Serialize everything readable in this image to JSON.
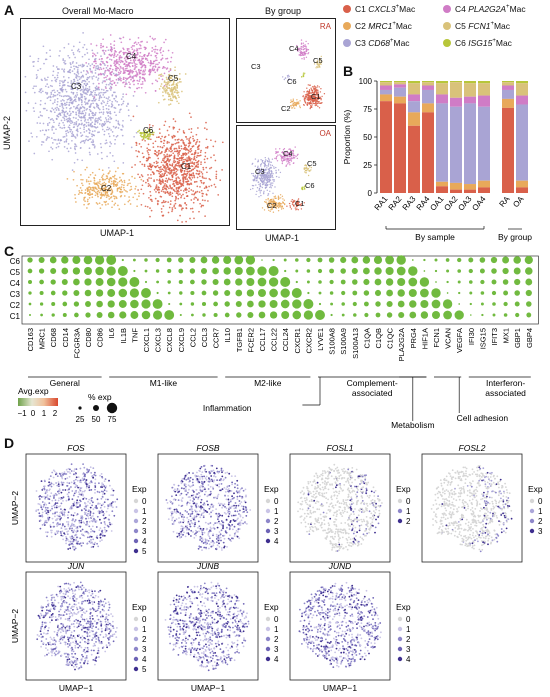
{
  "panels": {
    "A": "A",
    "B": "B",
    "C": "C",
    "D": "D"
  },
  "panelA": {
    "title_main": "Overall Mo-Macro",
    "title_group": "By group",
    "x_label": "UMAP-1",
    "y_label": "UMAP-2",
    "x_label_small": "UMAP-1",
    "group_ra": "RA",
    "group_oa": "OA",
    "clusters": [
      "C1",
      "C2",
      "C3",
      "C4",
      "C5",
      "C6"
    ],
    "cluster_colors": [
      "#d9604a",
      "#e8a95a",
      "#a9a4d4",
      "#d07cc6",
      "#d9c27a",
      "#b7c63a"
    ]
  },
  "legend": {
    "items": [
      {
        "id": "C1",
        "gene": "CXCL3",
        "suffix": "Mac",
        "color": "#d9604a"
      },
      {
        "id": "C2",
        "gene": "MRC1",
        "suffix": "Mac",
        "color": "#e8a95a"
      },
      {
        "id": "C3",
        "gene": "CD68",
        "suffix": "Mac",
        "color": "#a9a4d4"
      },
      {
        "id": "C4",
        "gene": "PLA2G2A",
        "suffix": "Mac",
        "color": "#d07cc6"
      },
      {
        "id": "C5",
        "gene": "FCN1",
        "suffix": "Mac",
        "color": "#d9c27a"
      },
      {
        "id": "C6",
        "gene": "ISG15",
        "suffix": "Mac",
        "color": "#b7c63a"
      }
    ]
  },
  "chart_data": {
    "type": "bar",
    "ylabel": "Proportion (%)",
    "ylim": [
      0,
      100
    ],
    "yticks": [
      "0",
      "25",
      "50",
      "75",
      "100"
    ],
    "categories": [
      "RA1",
      "RA2",
      "RA3",
      "RA4",
      "OA1",
      "OA2",
      "OA3",
      "OA4",
      "RA",
      "OA"
    ],
    "group_labels": {
      "by_sample": "By sample",
      "by_group": "By group"
    },
    "series": [
      {
        "name": "C1",
        "color": "#d9604a",
        "values": [
          82,
          80,
          60,
          72,
          6,
          3,
          3,
          5,
          76,
          5
        ]
      },
      {
        "name": "C2",
        "color": "#e8a95a",
        "values": [
          6,
          6,
          12,
          8,
          4,
          6,
          5,
          6,
          8,
          6
        ]
      },
      {
        "name": "C3",
        "color": "#a9a4d4",
        "values": [
          4,
          8,
          10,
          12,
          70,
          68,
          72,
          66,
          8,
          68
        ]
      },
      {
        "name": "C4",
        "color": "#d07cc6",
        "values": [
          4,
          3,
          6,
          4,
          8,
          8,
          6,
          10,
          4,
          8
        ]
      },
      {
        "name": "C5",
        "color": "#d9c27a",
        "values": [
          3,
          2,
          10,
          3,
          10,
          14,
          12,
          11,
          3,
          11
        ]
      },
      {
        "name": "C6",
        "color": "#b7c63a",
        "values": [
          1,
          1,
          2,
          1,
          2,
          1,
          2,
          2,
          1,
          2
        ]
      }
    ]
  },
  "panelC": {
    "rows": [
      "C6",
      "C5",
      "C4",
      "C3",
      "C2",
      "C1"
    ],
    "genes": [
      "CD163",
      "MRC1",
      "CD68",
      "CD14",
      "FCGR3A",
      "CD80",
      "CD86",
      "IL6",
      "IL1B",
      "TNF",
      "CXCL1",
      "CXCL3",
      "CXCL8",
      "CXCL9",
      "CCL2",
      "CCL3",
      "CCR7",
      "IL10",
      "TGFB1",
      "FCER2",
      "CCL17",
      "CCL22",
      "CCL24",
      "CXCR1",
      "CXCR2",
      "LYVE1",
      "S100A8",
      "S100A9",
      "S100A13",
      "C1QA",
      "C1QB",
      "C1QC",
      "PLA2G2A",
      "PRG4",
      "HIF1A",
      "FCN1",
      "VCAN",
      "VEGFA",
      "IFI30",
      "ISG15",
      "IFIT3",
      "MX1",
      "GBP1",
      "GBP4"
    ],
    "categories": [
      {
        "label": "General"
      },
      {
        "label": "M1-like"
      },
      {
        "label": "M2-like"
      },
      {
        "label": "Inflammation"
      },
      {
        "label": "Complement-\nassociated"
      },
      {
        "label": "Metabolism"
      },
      {
        "label": "Cell adhesion"
      },
      {
        "label": "Interferon-\nassociated"
      }
    ],
    "legend_avg": "Avg.exp",
    "legend_pct": "% exp",
    "avg_ticks": [
      "−1",
      "0",
      "1",
      "2"
    ],
    "pct_ticks": [
      "25",
      "50",
      "75"
    ]
  },
  "panelD": {
    "y_label": "UMAP−2",
    "x_label": "UMAP−1",
    "exp_label": "Exp",
    "plots": [
      {
        "gene": "FOS",
        "ticks": [
          "0",
          "1",
          "2",
          "3",
          "4",
          "5"
        ]
      },
      {
        "gene": "FOSB",
        "ticks": [
          "0",
          "1",
          "2",
          "3",
          "4"
        ]
      },
      {
        "gene": "FOSL1",
        "ticks": [
          "0",
          "1",
          "2"
        ]
      },
      {
        "gene": "FOSL2",
        "ticks": [
          "0",
          "1",
          "2",
          "3"
        ]
      },
      {
        "gene": "JUN",
        "ticks": [
          "0",
          "1",
          "2",
          "3",
          "4",
          "5"
        ]
      },
      {
        "gene": "JUNB",
        "ticks": [
          "0",
          "1",
          "2",
          "3",
          "4"
        ]
      },
      {
        "gene": "JUND",
        "ticks": [
          "0",
          "1",
          "2",
          "3",
          "4"
        ]
      }
    ]
  }
}
